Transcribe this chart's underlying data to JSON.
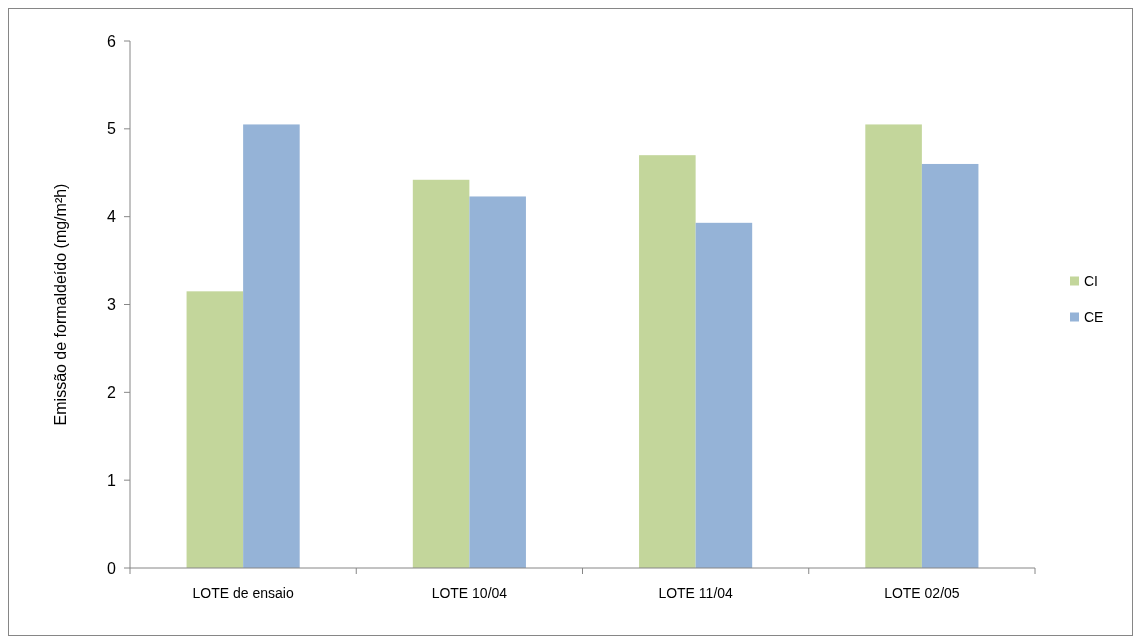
{
  "chart_data": {
    "type": "bar",
    "ylabel": "Emissão de formaldeído (mg/m²h)",
    "categories": [
      "LOTE de ensaio",
      "LOTE 10/04",
      "LOTE 11/04",
      "LOTE 02/05"
    ],
    "series": [
      {
        "name": "CI",
        "color": "#c3d69b",
        "values": [
          3.15,
          4.42,
          4.7,
          5.05
        ]
      },
      {
        "name": "CE",
        "color": "#95b3d7",
        "values": [
          5.05,
          4.23,
          3.93,
          4.6
        ]
      }
    ],
    "ylim": [
      0,
      6
    ],
    "yticks": [
      0,
      1,
      2,
      3,
      4,
      5,
      6
    ],
    "grid": false,
    "legend": "right"
  }
}
